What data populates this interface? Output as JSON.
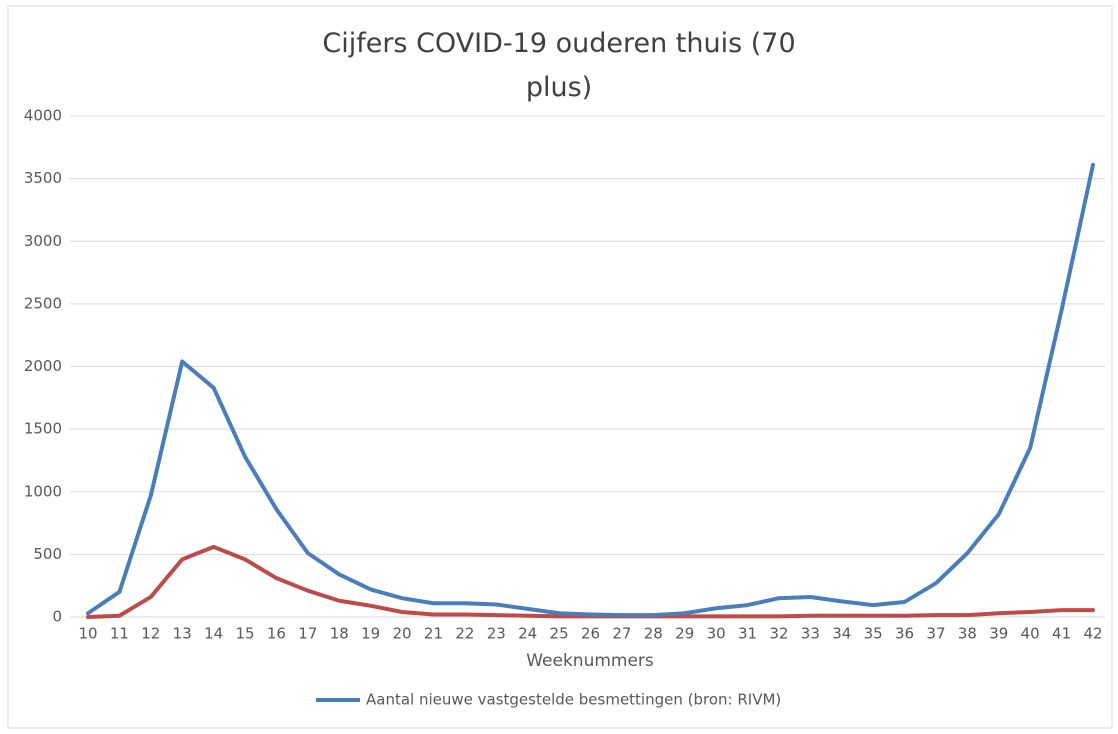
{
  "chart_data": {
    "type": "line",
    "title": "Cijfers COVID-19 ouderen thuis (70 plus)",
    "x_label": "Weeknummers",
    "categories": [
      "10",
      "11",
      "12",
      "13",
      "14",
      "15",
      "16",
      "17",
      "18",
      "19",
      "20",
      "21",
      "22",
      "23",
      "24",
      "25",
      "26",
      "27",
      "28",
      "29",
      "30",
      "31",
      "32",
      "33",
      "34",
      "35",
      "36",
      "37",
      "38",
      "39",
      "40",
      "41",
      "42"
    ],
    "series": [
      {
        "name": "Aantal nieuwe vastgestelde besmettingen (bron: RIVM)",
        "color": "#4a7ebb",
        "values": [
          30,
          200,
          970,
          2040,
          1830,
          1280,
          860,
          510,
          340,
          220,
          150,
          110,
          110,
          100,
          65,
          30,
          20,
          15,
          15,
          30,
          70,
          95,
          150,
          160,
          125,
          95,
          120,
          270,
          510,
          820,
          1350,
          2450,
          3610
        ]
      },
      {
        "color": "#be4b48",
        "values": [
          0,
          10,
          160,
          460,
          560,
          460,
          310,
          210,
          130,
          90,
          40,
          20,
          20,
          15,
          10,
          5,
          5,
          5,
          5,
          5,
          5,
          5,
          5,
          10,
          10,
          10,
          10,
          15,
          15,
          30,
          40,
          55,
          55
        ]
      }
    ],
    "ylim": [
      0,
      4000
    ],
    "yticks": [
      0,
      500,
      1000,
      1500,
      2000,
      2500,
      3000,
      3500,
      4000
    ],
    "grid": true,
    "legend": "bottom"
  }
}
